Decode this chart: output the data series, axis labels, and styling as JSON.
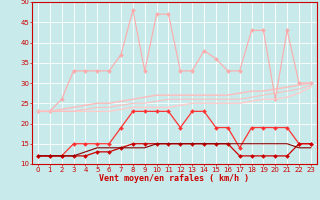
{
  "x": [
    0,
    1,
    2,
    3,
    4,
    5,
    6,
    7,
    8,
    9,
    10,
    11,
    12,
    13,
    14,
    15,
    16,
    17,
    18,
    19,
    20,
    21,
    22,
    23
  ],
  "series": [
    {
      "name": "light_pink_gust",
      "color": "#ffaaaa",
      "linewidth": 0.8,
      "marker": "D",
      "markersize": 2.0,
      "y": [
        23,
        23,
        26,
        33,
        33,
        33,
        33,
        37,
        48,
        33,
        47,
        47,
        33,
        33,
        38,
        36,
        33,
        33,
        43,
        43,
        26,
        43,
        30,
        30
      ]
    },
    {
      "name": "salmon_smooth_upper",
      "color": "#ffbbbb",
      "linewidth": 1.0,
      "marker": null,
      "y": [
        23,
        23,
        23.5,
        24,
        24.5,
        25,
        25,
        25.5,
        26,
        26.5,
        27,
        27,
        27,
        27,
        27,
        27,
        27,
        27.5,
        28,
        28,
        28.5,
        29,
        29.5,
        30
      ]
    },
    {
      "name": "salmon_smooth_lower",
      "color": "#ffcccc",
      "linewidth": 1.0,
      "marker": null,
      "y": [
        23,
        23,
        23,
        23,
        23,
        23,
        23,
        23.5,
        24,
        24,
        24,
        24,
        24.5,
        25,
        25,
        25,
        25,
        25,
        25.5,
        26,
        26,
        26.5,
        27.5,
        29
      ]
    },
    {
      "name": "salmon_smooth_mid",
      "color": "#ffbbbb",
      "linewidth": 0.7,
      "marker": null,
      "y": [
        23,
        23,
        23,
        23,
        23.5,
        24,
        24,
        24.5,
        25,
        25,
        25.5,
        26,
        26,
        26,
        26,
        26,
        26,
        26,
        26.5,
        27,
        27.5,
        28,
        28.5,
        29.5
      ]
    },
    {
      "name": "red_main",
      "color": "#ff3333",
      "linewidth": 0.9,
      "marker": "D",
      "markersize": 2.0,
      "y": [
        12,
        12,
        12,
        15,
        15,
        15,
        15,
        19,
        23,
        23,
        23,
        23,
        19,
        23,
        23,
        19,
        19,
        14,
        19,
        19,
        19,
        19,
        15,
        15
      ]
    },
    {
      "name": "dark_red_lower",
      "color": "#cc0000",
      "linewidth": 0.9,
      "marker": "D",
      "markersize": 2.0,
      "y": [
        12,
        12,
        12,
        12,
        12,
        13,
        13,
        14,
        15,
        15,
        15,
        15,
        15,
        15,
        15,
        15,
        15,
        12,
        12,
        12,
        12,
        12,
        15,
        15
      ]
    },
    {
      "name": "dark_red_flat",
      "color": "#880000",
      "linewidth": 0.8,
      "marker": null,
      "y": [
        12,
        12,
        12,
        12,
        13,
        14,
        14,
        14,
        14,
        14,
        15,
        15,
        15,
        15,
        15,
        15,
        15,
        15,
        15,
        15,
        15,
        15,
        14,
        14
      ]
    }
  ],
  "xlim": [
    -0.5,
    23.5
  ],
  "ylim": [
    10,
    50
  ],
  "yticks": [
    10,
    15,
    20,
    25,
    30,
    35,
    40,
    45,
    50
  ],
  "xticks": [
    0,
    1,
    2,
    3,
    4,
    5,
    6,
    7,
    8,
    9,
    10,
    11,
    12,
    13,
    14,
    15,
    16,
    17,
    18,
    19,
    20,
    21,
    22,
    23
  ],
  "xlabel": "Vent moyen/en rafales ( km/h )",
  "background_color": "#c8eaea",
  "grid_color": "#ffffff",
  "xlabel_color": "#cc0000",
  "xlabel_fontsize": 6.0,
  "tick_fontsize": 5.0,
  "tick_color": "#cc0000",
  "spine_color": "#cc0000"
}
